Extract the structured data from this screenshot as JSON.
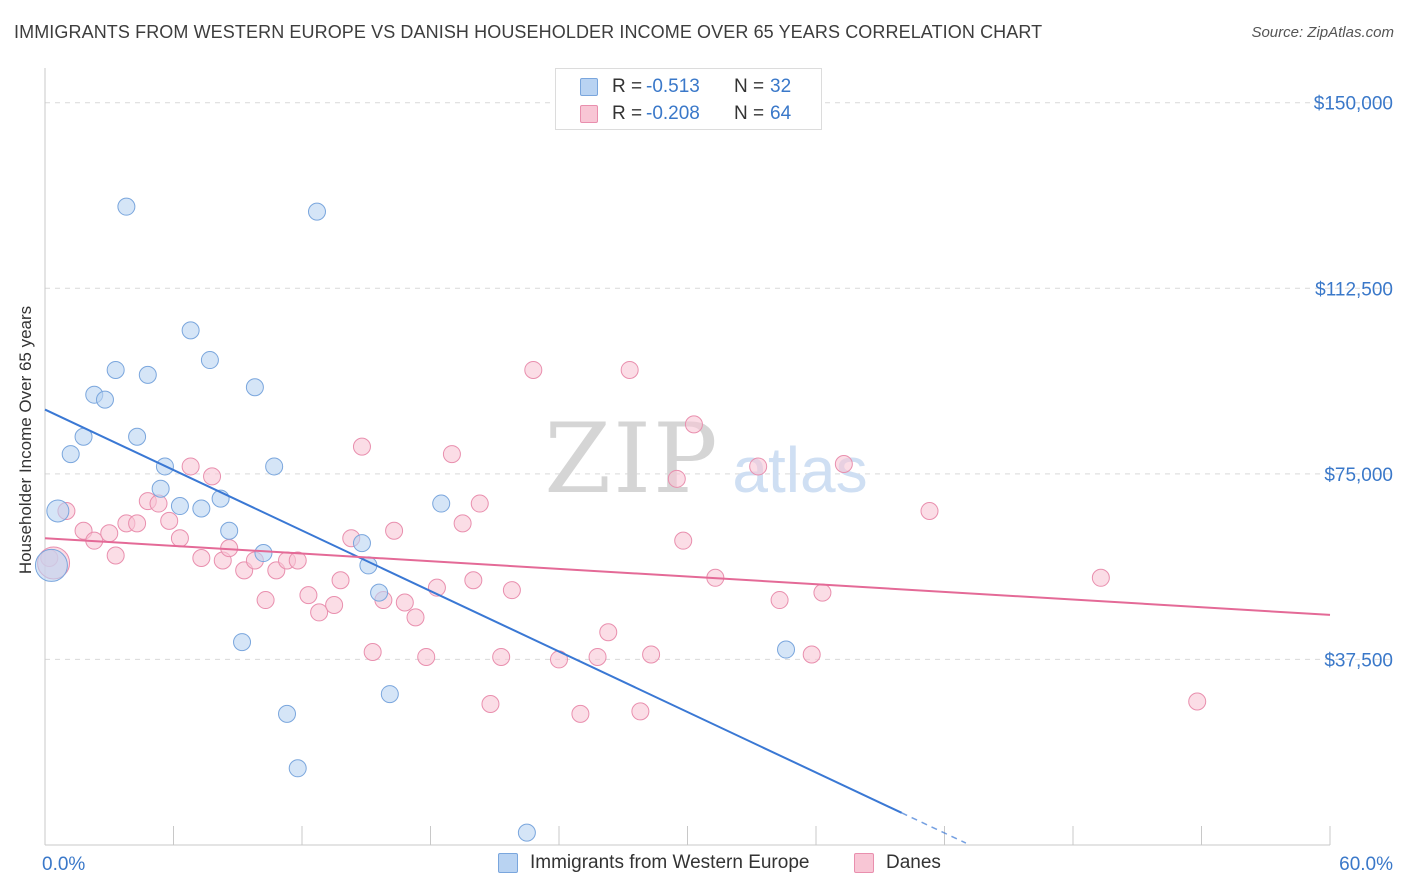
{
  "header": {
    "title": "IMMIGRANTS FROM WESTERN EUROPE VS DANISH HOUSEHOLDER INCOME OVER 65 YEARS CORRELATION CHART",
    "source": "Source: ZipAtlas.com"
  },
  "watermark": {
    "zip": "ZIP",
    "atlas": "atlas"
  },
  "legend_top": {
    "rows": [
      {
        "r_label": "R =",
        "r_value": "-0.513",
        "n_label": "N =",
        "n_value": "32"
      },
      {
        "r_label": "R =",
        "r_value": "-0.208",
        "n_label": "N =",
        "n_value": "64"
      }
    ]
  },
  "legend_bottom": {
    "items": [
      {
        "label": "Immigrants from Western Europe"
      },
      {
        "label": "Danes"
      }
    ]
  },
  "colors": {
    "blue_fill": "#b9d3f2",
    "blue_stroke": "#7aa6dd",
    "blue_line": "#3a78d4",
    "pink_fill": "#f8c6d5",
    "pink_stroke": "#e98fae",
    "pink_line": "#e46a97",
    "axis_label": "#3a78c9",
    "grid": "#d9d9d9"
  },
  "chart_data": {
    "type": "scatter",
    "title": "IMMIGRANTS FROM WESTERN EUROPE VS DANISH HOUSEHOLDER INCOME OVER 65 YEARS CORRELATION CHART",
    "xlabel": "",
    "ylabel": "Householder Income Over 65 years",
    "xlim": [
      0,
      60
    ],
    "ylim": [
      0,
      155000
    ],
    "x_tick_labels": [
      "0.0%",
      "60.0%"
    ],
    "y_ticks": [
      37500,
      75000,
      112500,
      150000
    ],
    "y_tick_labels": [
      "$37,500",
      "$75,000",
      "$112,500",
      "$150,000"
    ],
    "series": [
      {
        "name": "Immigrants from Western Europe",
        "color": "blue",
        "r": -0.513,
        "n": 32,
        "trend": {
          "x0": 0,
          "y0": 88000,
          "x1": 40,
          "y1": 6500,
          "dash_to_x": 43
        },
        "points": [
          [
            0.3,
            56500
          ],
          [
            0.6,
            67500
          ],
          [
            1.2,
            79000
          ],
          [
            1.8,
            82500
          ],
          [
            2.3,
            91000
          ],
          [
            2.8,
            90000
          ],
          [
            3.3,
            96000
          ],
          [
            3.8,
            129000
          ],
          [
            4.3,
            82500
          ],
          [
            4.8,
            95000
          ],
          [
            5.4,
            72000
          ],
          [
            5.6,
            76500
          ],
          [
            6.3,
            68500
          ],
          [
            6.8,
            104000
          ],
          [
            7.3,
            68000
          ],
          [
            7.7,
            98000
          ],
          [
            8.2,
            70000
          ],
          [
            8.6,
            63500
          ],
          [
            9.2,
            41000
          ],
          [
            9.8,
            92500
          ],
          [
            10.2,
            59000
          ],
          [
            10.7,
            76500
          ],
          [
            11.3,
            26500
          ],
          [
            11.8,
            15500
          ],
          [
            12.7,
            128000
          ],
          [
            14.8,
            61000
          ],
          [
            15.1,
            56500
          ],
          [
            15.6,
            51000
          ],
          [
            16.1,
            30500
          ],
          [
            18.5,
            69000
          ],
          [
            22.5,
            2500
          ],
          [
            34.6,
            39500
          ]
        ]
      },
      {
        "name": "Danes",
        "color": "pink",
        "r": -0.208,
        "n": 64,
        "trend": {
          "x0": 0,
          "y0": 62000,
          "x1": 60,
          "y1": 46500
        },
        "points": [
          [
            0.2,
            58000
          ],
          [
            1.0,
            67500
          ],
          [
            1.8,
            63500
          ],
          [
            2.3,
            61500
          ],
          [
            3.0,
            63000
          ],
          [
            3.3,
            58500
          ],
          [
            3.8,
            65000
          ],
          [
            4.3,
            65000
          ],
          [
            4.8,
            69500
          ],
          [
            5.3,
            69000
          ],
          [
            5.8,
            65500
          ],
          [
            6.3,
            62000
          ],
          [
            6.8,
            76500
          ],
          [
            7.3,
            58000
          ],
          [
            7.8,
            74500
          ],
          [
            8.3,
            57500
          ],
          [
            8.6,
            60000
          ],
          [
            9.3,
            55500
          ],
          [
            9.8,
            57500
          ],
          [
            10.3,
            49500
          ],
          [
            10.8,
            55500
          ],
          [
            11.3,
            57500
          ],
          [
            11.8,
            57500
          ],
          [
            12.3,
            50500
          ],
          [
            12.8,
            47000
          ],
          [
            13.5,
            48500
          ],
          [
            13.8,
            53500
          ],
          [
            14.3,
            62000
          ],
          [
            14.8,
            80500
          ],
          [
            15.3,
            39000
          ],
          [
            15.8,
            49500
          ],
          [
            16.3,
            63500
          ],
          [
            16.8,
            49000
          ],
          [
            17.3,
            46000
          ],
          [
            17.8,
            38000
          ],
          [
            18.3,
            52000
          ],
          [
            19.0,
            79000
          ],
          [
            19.5,
            65000
          ],
          [
            20.0,
            53500
          ],
          [
            20.3,
            69000
          ],
          [
            20.8,
            28500
          ],
          [
            21.3,
            38000
          ],
          [
            21.8,
            51500
          ],
          [
            22.8,
            96000
          ],
          [
            24.0,
            37500
          ],
          [
            25.0,
            26500
          ],
          [
            25.8,
            38000
          ],
          [
            26.3,
            43000
          ],
          [
            27.3,
            96000
          ],
          [
            27.8,
            27000
          ],
          [
            28.3,
            38500
          ],
          [
            29.5,
            74000
          ],
          [
            29.8,
            61500
          ],
          [
            30.3,
            85000
          ],
          [
            31.3,
            54000
          ],
          [
            33.3,
            76500
          ],
          [
            34.3,
            49500
          ],
          [
            35.8,
            38500
          ],
          [
            36.3,
            51000
          ],
          [
            37.3,
            77000
          ],
          [
            41.3,
            67500
          ],
          [
            49.3,
            54000
          ],
          [
            53.8,
            29000
          ],
          [
            0.4,
            57000
          ]
        ]
      }
    ]
  }
}
